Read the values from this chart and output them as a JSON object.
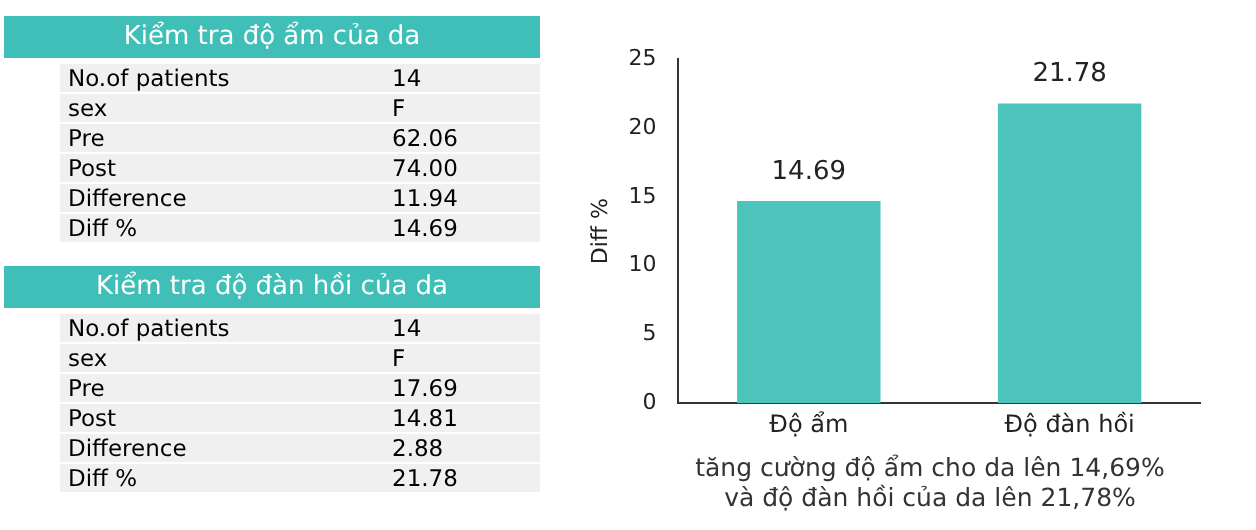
{
  "chart_data": [
    {
      "type": "other",
      "title": "Kiểm tra độ ẩm của da",
      "categories": [
        "No.of patients",
        "sex",
        "Pre",
        "Post",
        "Difference",
        "Diff %"
      ],
      "value_labels": [
        "14",
        "F",
        "62.06",
        "74.00",
        "11.94",
        "14.69"
      ],
      "color": "#3fbfb7"
    },
    {
      "type": "other",
      "title": "Kiểm tra độ đàn hồi của da",
      "categories": [
        "No.of patients",
        "sex",
        "Pre",
        "Post",
        "Difference",
        "Diff %"
      ],
      "value_labels": [
        "14",
        "F",
        "17.69",
        "14.81",
        "2.88",
        "21.78"
      ],
      "color": "#3fbfb7"
    },
    {
      "type": "bar",
      "categories": [
        "Độ ẩm",
        "Độ đàn hồi"
      ],
      "values": [
        14.69,
        21.78
      ],
      "color": "#4cc4bc",
      "ylabel": "Diff %",
      "ylim": [
        0,
        25
      ],
      "yticks": [
        0,
        5,
        10,
        15,
        20,
        25
      ],
      "grid": false,
      "legend": false,
      "data_labels": true,
      "annotations": [
        "tăng cường độ ẩm cho da lên 14,69%\nvà độ đàn hồi của da lên 21,78%"
      ]
    }
  ]
}
